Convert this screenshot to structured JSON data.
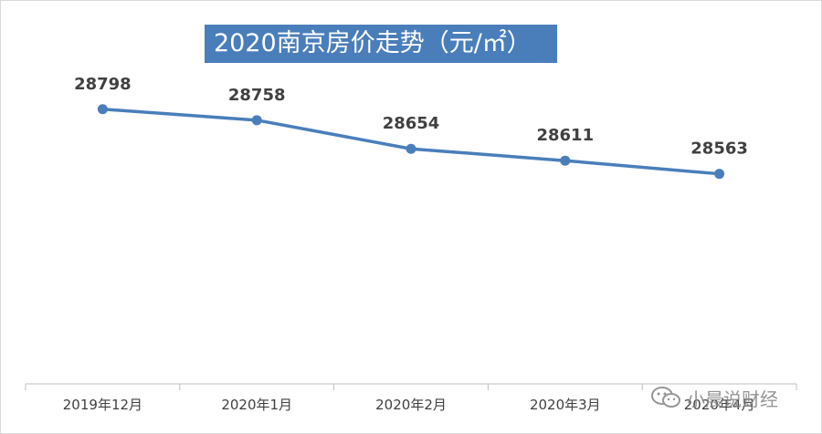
{
  "chart_data": {
    "type": "line",
    "title": "2020南京房价走势（元/㎡）",
    "categories": [
      "2019年12月",
      "2020年1月",
      "2020年2月",
      "2020年3月",
      "2020年4月"
    ],
    "values": [
      28798,
      28758,
      28654,
      28611,
      28563
    ],
    "data_labels": [
      "28798",
      "28758",
      "28654",
      "28611",
      "28563"
    ],
    "ylim": [
      27800,
      28880
    ],
    "grid": false,
    "legend": "none",
    "line_color": "#4a7ebb",
    "axis_color": "#bfbfbf"
  },
  "watermark": {
    "text": "小晨说财经",
    "icon": "wechat-icon"
  }
}
